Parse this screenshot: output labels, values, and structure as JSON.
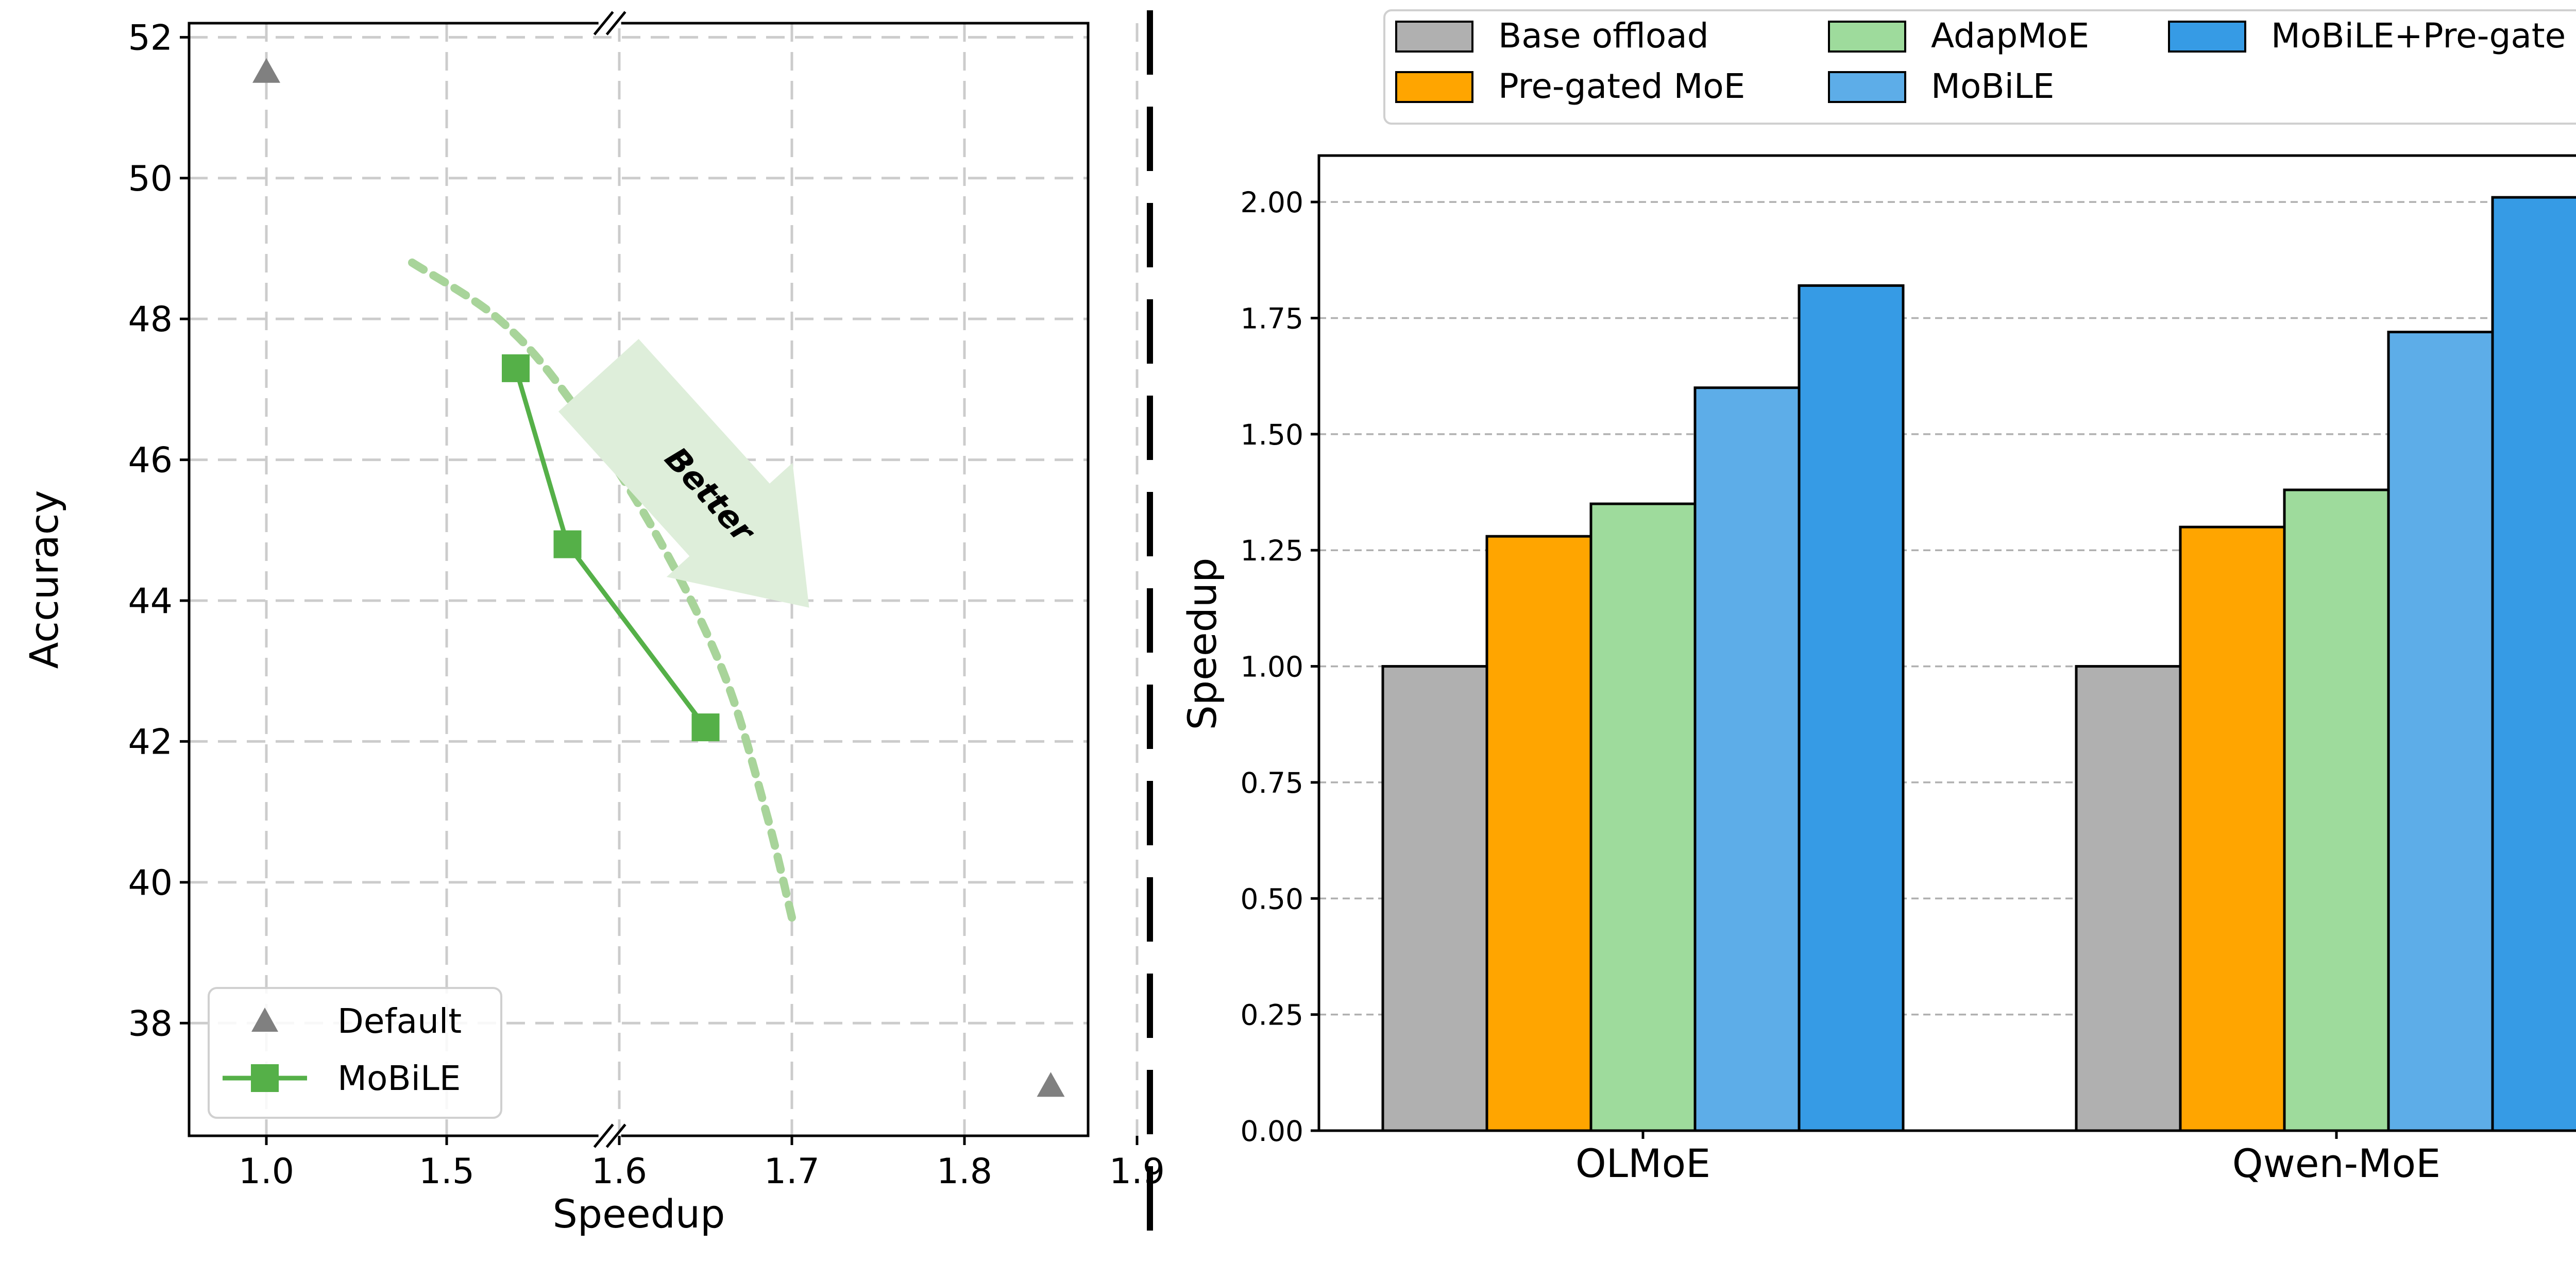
{
  "chart_data": [
    {
      "type": "scatter",
      "title": "",
      "xlabel": "Speedup",
      "ylabel": "Accuracy",
      "xlim": [
        0.955,
        1.9
      ],
      "ylim": [
        36.4,
        52.2
      ],
      "x_ticks": [
        "1.0",
        "1.5",
        "1.6",
        "1.7",
        "1.8",
        "1.9"
      ],
      "y_ticks": [
        "38",
        "40",
        "42",
        "44",
        "46",
        "48",
        "50",
        "52"
      ],
      "broken_x_axis": true,
      "grid": true,
      "legend_position": "lower-left",
      "series": [
        {
          "name": "Default",
          "marker": "triangle",
          "color": "#808080",
          "points": [
            {
              "x": 1.0,
              "y": 51.5
            },
            {
              "x": 1.85,
              "y": 37.1
            }
          ]
        },
        {
          "name": "MoBiLE",
          "marker": "square",
          "color": "#55b048",
          "points": [
            {
              "x": 1.54,
              "y": 47.3
            },
            {
              "x": 1.57,
              "y": 44.8
            },
            {
              "x": 1.65,
              "y": 42.2
            }
          ]
        }
      ],
      "frontier_curve": {
        "color": "#a8d49a",
        "points": [
          {
            "x": 1.48,
            "y": 48.8
          },
          {
            "x": 1.53,
            "y": 48.0
          },
          {
            "x": 1.57,
            "y": 46.9
          },
          {
            "x": 1.62,
            "y": 45.0
          },
          {
            "x": 1.66,
            "y": 43.0
          },
          {
            "x": 1.685,
            "y": 41.0
          },
          {
            "x": 1.7,
            "y": 39.5
          }
        ]
      },
      "annotation": {
        "text": "Better",
        "color": "#deeeda"
      }
    },
    {
      "type": "bar",
      "title": "",
      "xlabel": "",
      "ylabel": "Speedup",
      "ylim": [
        0,
        2.1
      ],
      "y_ticks": [
        "0.00",
        "0.25",
        "0.50",
        "0.75",
        "1.00",
        "1.25",
        "1.50",
        "1.75",
        "2.00"
      ],
      "categories": [
        "OLMoE",
        "Qwen-MoE"
      ],
      "grid": true,
      "legend_position": "top",
      "series": [
        {
          "name": "Base offload",
          "color": "#b0b0b0",
          "values": [
            1.0,
            1.0
          ]
        },
        {
          "name": "Pre-gated MoE",
          "color": "#ffa500",
          "values": [
            1.28,
            1.3
          ]
        },
        {
          "name": "AdapMoE",
          "color": "#9edb9c",
          "values": [
            1.35,
            1.38
          ]
        },
        {
          "name": "MoBiLE",
          "color": "#5dade8",
          "values": [
            1.6,
            1.72
          ]
        },
        {
          "name": "MoBiLE+Pre-gate",
          "color": "#369be5",
          "values": [
            1.82,
            2.01
          ]
        }
      ]
    }
  ]
}
